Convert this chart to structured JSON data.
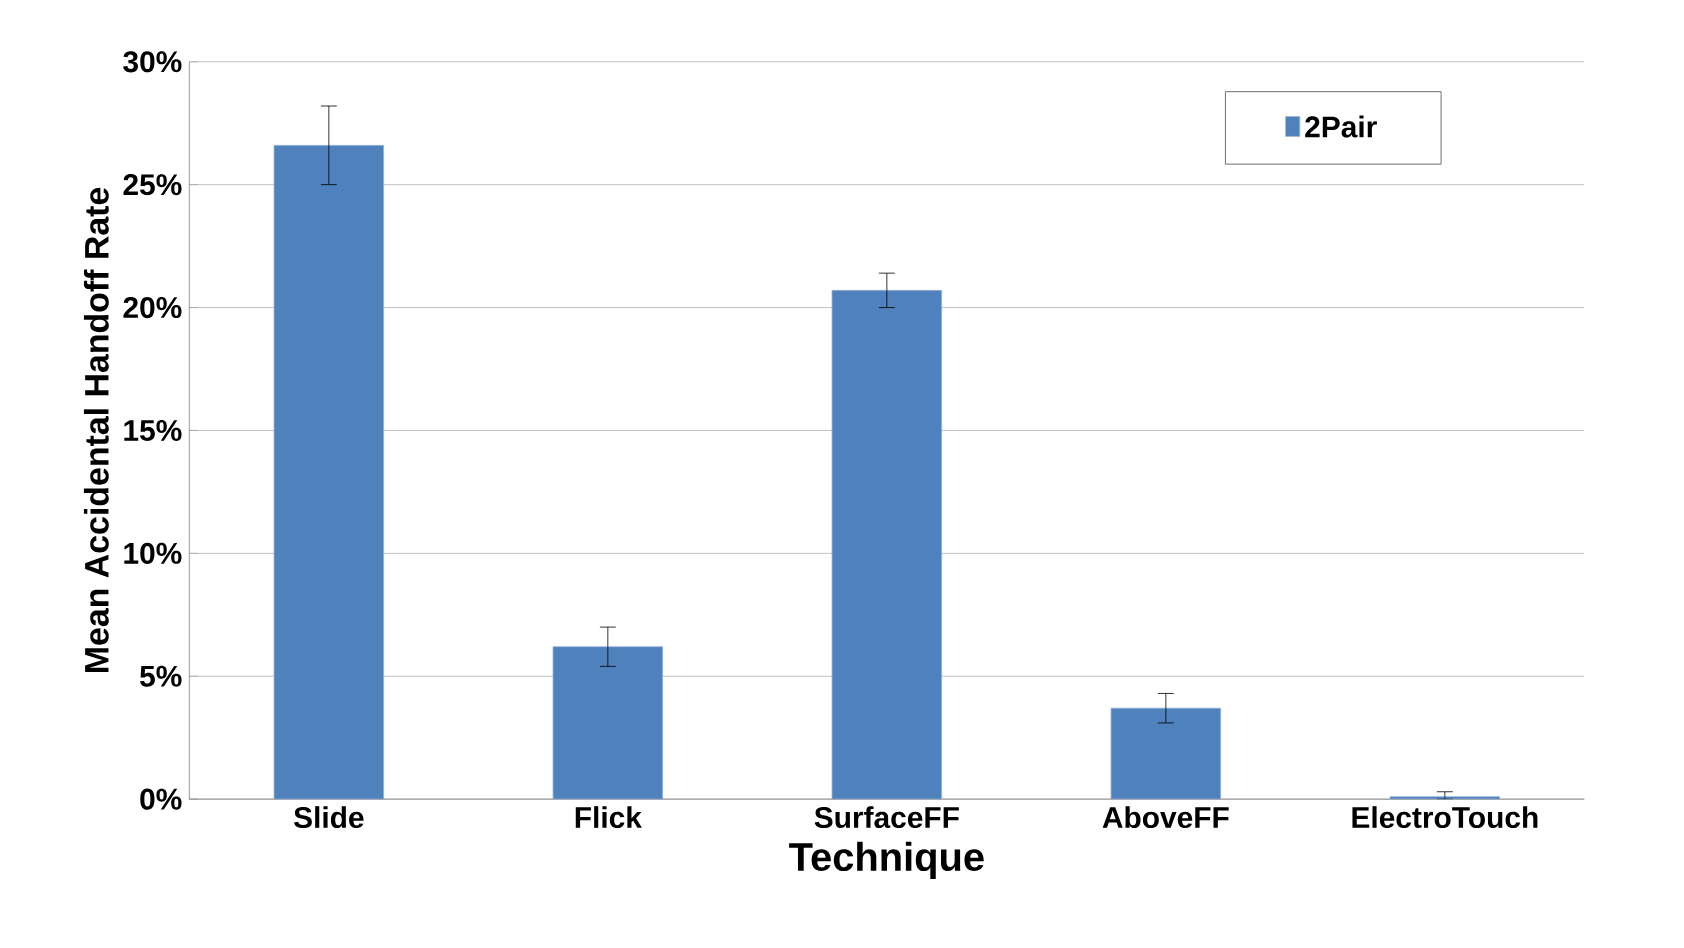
{
  "chart_data": {
    "type": "bar",
    "xlabel": "Technique",
    "ylabel": "Mean Accidental Handoff Rate",
    "categories": [
      "Slide",
      "Flick",
      "SurfaceFF",
      "AboveFF",
      "ElectroTouch"
    ],
    "series": [
      {
        "name": "2Pair",
        "color": "#4f81bd",
        "values": [
          26.6,
          6.2,
          20.7,
          3.7,
          0.1
        ],
        "errors": [
          1.6,
          0.8,
          0.7,
          0.6,
          [
            0.1,
            0.2
          ]
        ]
      }
    ],
    "ylim": [
      0,
      30
    ],
    "yticks": [
      {
        "value": 0,
        "label": "0%"
      },
      {
        "value": 5,
        "label": "5%"
      },
      {
        "value": 10,
        "label": "10%"
      },
      {
        "value": 15,
        "label": "15%"
      },
      {
        "value": 20,
        "label": "20%"
      },
      {
        "value": 25,
        "label": "25%"
      },
      {
        "value": 30,
        "label": "30%"
      }
    ],
    "grid": "y",
    "legend": "top right"
  }
}
